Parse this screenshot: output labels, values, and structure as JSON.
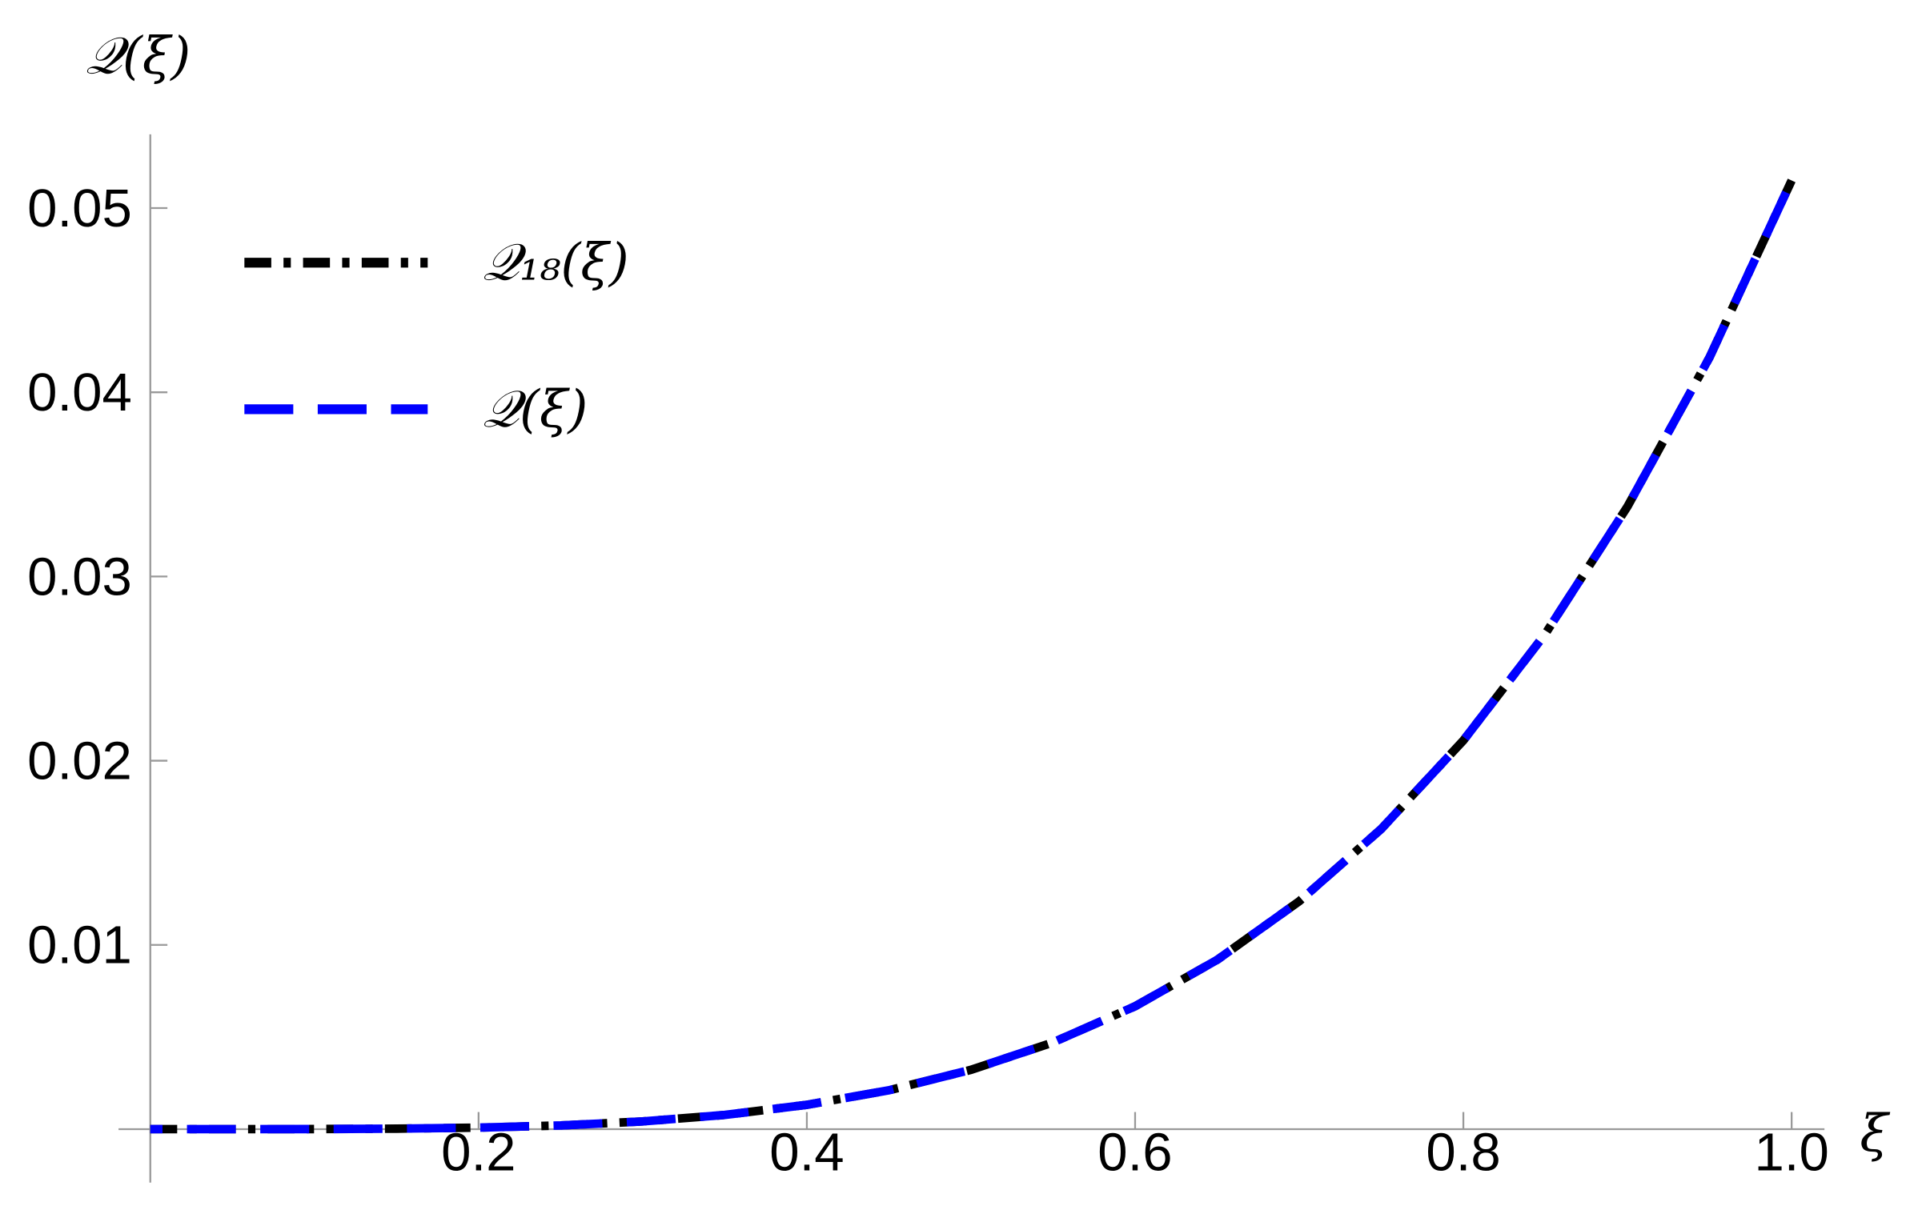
{
  "chart_data": {
    "type": "line",
    "y_label": "𝒬(ξ)",
    "x_label": "ξ",
    "x": [
      0,
      0.05,
      0.1,
      0.15,
      0.2,
      0.25,
      0.3,
      0.35,
      0.4,
      0.45,
      0.5,
      0.55,
      0.6,
      0.65,
      0.7,
      0.75,
      0.8,
      0.85,
      0.9,
      0.95,
      1.0
    ],
    "series": [
      {
        "name": "𝒬₁₈(ξ)",
        "color": "#000000",
        "dash": "dashdot",
        "values": [
          0,
          3e-07,
          5e-06,
          2.6e-05,
          8.2e-05,
          0.0002,
          0.00042,
          0.00077,
          0.00132,
          0.00211,
          0.00322,
          0.00471,
          0.00667,
          0.00919,
          0.01237,
          0.0163,
          0.0211,
          0.0269,
          0.0338,
          0.0419,
          0.0515
        ]
      },
      {
        "name": "𝒬(ξ)",
        "color": "#0000ff",
        "dash": "longdash",
        "values": [
          0,
          3e-07,
          5e-06,
          2.6e-05,
          8.2e-05,
          0.0002,
          0.00042,
          0.00077,
          0.00132,
          0.00211,
          0.00322,
          0.00471,
          0.00667,
          0.00919,
          0.01237,
          0.0163,
          0.0211,
          0.0269,
          0.0338,
          0.0419,
          0.0515
        ]
      }
    ],
    "xlim": [
      0,
      1.02
    ],
    "ylim": [
      -0.0029,
      0.054
    ],
    "xticks": [
      0.2,
      0.4,
      0.6,
      0.8,
      {
        "value": 1,
        "label": "1.0"
      }
    ],
    "yticks": [
      0.01,
      0.02,
      0.03,
      0.04,
      0.05
    ],
    "legend": "upper-left"
  }
}
